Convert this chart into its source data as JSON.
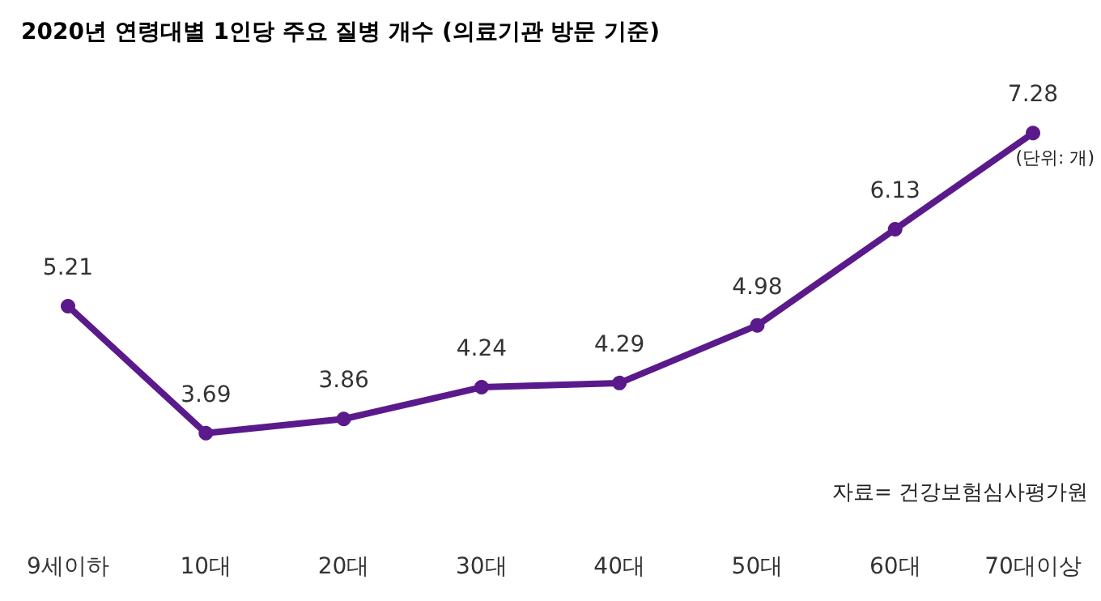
{
  "chart_data": {
    "type": "line",
    "title": "2020년 연령대별 1인당 주요 질병 개수 (의료기관 방문 기준)",
    "categories": [
      "9세이하",
      "10대",
      "20대",
      "30대",
      "40대",
      "50대",
      "60대",
      "70대이상"
    ],
    "series": [
      {
        "color": "#5a1a8c",
        "values": [
          5.21,
          3.69,
          3.86,
          4.24,
          4.29,
          4.98,
          6.13,
          7.28
        ]
      }
    ],
    "annotations": [
      "(단위: 개)",
      "자료= 건강보험심사평가원"
    ],
    "data_labels": true,
    "marker": "circle",
    "line_style": "solid",
    "grid": false,
    "tick_labels": "x"
  }
}
